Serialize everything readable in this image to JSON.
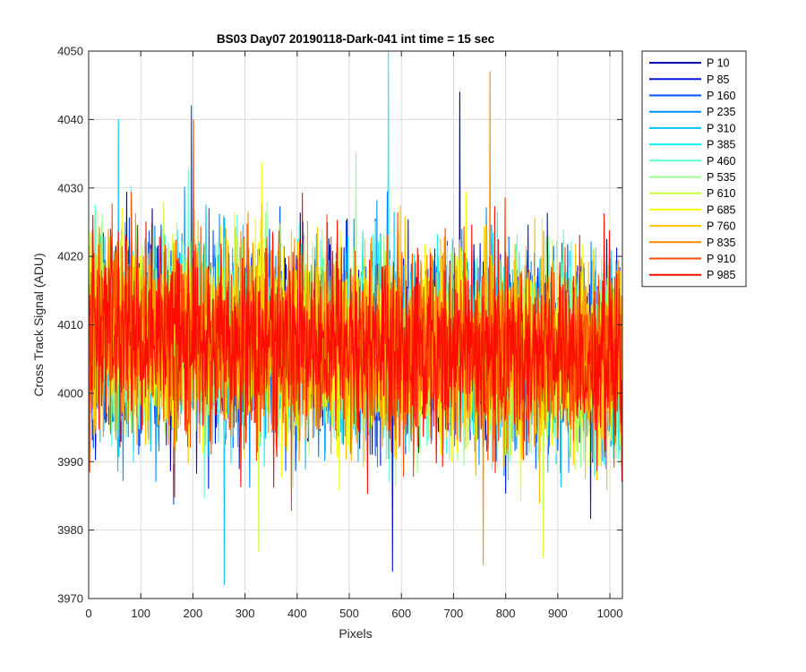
{
  "chart_data": {
    "type": "line",
    "title": "BS03 Day07 20190118-Dark-041 int time = 15 sec",
    "xlabel": "Pixels",
    "ylabel": "Cross Track Signal (ADU)",
    "xlim": [
      0,
      1024
    ],
    "ylim": [
      3970,
      4050
    ],
    "xticks": [
      0,
      100,
      200,
      300,
      400,
      500,
      600,
      700,
      800,
      900,
      1000
    ],
    "yticks": [
      3970,
      3980,
      3990,
      4000,
      4010,
      4020,
      4030,
      4040,
      4050
    ],
    "grid": true,
    "legend_position": "outside-top-right",
    "noise_model": {
      "center_start": 4009,
      "center_end": 4005,
      "spread": 9,
      "samples_per_series": 1024
    },
    "series": [
      {
        "name": "P 10",
        "color": "#0000a8"
      },
      {
        "name": "P 85",
        "color": "#0014e0"
      },
      {
        "name": "P 160",
        "color": "#0050ff"
      },
      {
        "name": "P 235",
        "color": "#0090ff"
      },
      {
        "name": "P 310",
        "color": "#00c4ff"
      },
      {
        "name": "P 385",
        "color": "#10f4f0"
      },
      {
        "name": "P 460",
        "color": "#60ffd0"
      },
      {
        "name": "P 535",
        "color": "#98ff90"
      },
      {
        "name": "P 610",
        "color": "#c8ff40"
      },
      {
        "name": "P 685",
        "color": "#f8ff00"
      },
      {
        "name": "P 760",
        "color": "#ffc400"
      },
      {
        "name": "P 835",
        "color": "#ff8c00"
      },
      {
        "name": "P 910",
        "color": "#ff4a00"
      },
      {
        "name": "P 985",
        "color": "#ff0c00"
      }
    ],
    "notable_points": [
      {
        "series": "P 10",
        "x": 712,
        "y": 4044
      },
      {
        "series": "P 85",
        "x": 583,
        "y": 3974
      },
      {
        "series": "P 160",
        "x": 197,
        "y": 4042
      },
      {
        "series": "P 310",
        "x": 57,
        "y": 4040
      },
      {
        "series": "P 385",
        "x": 575,
        "y": 4050
      },
      {
        "series": "P 310",
        "x": 260,
        "y": 3972
      },
      {
        "series": "P 835",
        "x": 770,
        "y": 4047
      },
      {
        "series": "P 835",
        "x": 757,
        "y": 3975
      },
      {
        "series": "P 910",
        "x": 201,
        "y": 4040
      },
      {
        "series": "P 610",
        "x": 872,
        "y": 3976
      }
    ]
  }
}
